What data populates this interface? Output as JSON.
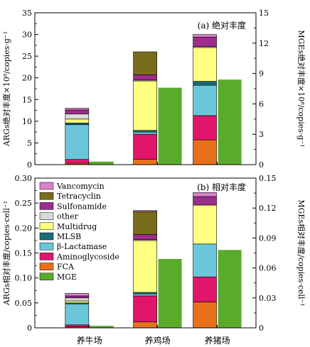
{
  "chart_data": [
    {
      "type": "bar",
      "stacked": true,
      "panel_label": "(b) 相对丰度",
      "categories": [
        "养牛场",
        "养鸡场",
        "养猪场"
      ],
      "ylabel": "ARGs相对丰度/copies·cell⁻¹",
      "y2label": "MGEs相对丰度/copies·cell⁻¹",
      "ylim": [
        0,
        0.3
      ],
      "yticks": [
        "0",
        "0.05",
        "0.10",
        "0.15",
        "0.20",
        "0.25",
        "0.30"
      ],
      "y2lim": [
        0,
        0.15
      ],
      "y2ticks": [
        "0",
        "0.03",
        "0.06",
        "0.09",
        "0.12",
        "0.15"
      ],
      "legend": [
        "Vancomycin",
        "Tetracyclin",
        "Sulfonamide",
        "other",
        "Multidrug",
        "MLSB",
        "β-Lactamase",
        "Aminoglycoside",
        "FCA",
        "MGE"
      ],
      "legend_position": "top-left",
      "series": [
        {
          "name": "FCA",
          "color": "#e8701a",
          "values": [
            0.002,
            0.012,
            0.052
          ]
        },
        {
          "name": "Aminoglycoside",
          "color": "#e0156b",
          "values": [
            0.004,
            0.052,
            0.05
          ]
        },
        {
          "name": "β-Lactamase",
          "color": "#6cc6d9",
          "values": [
            0.042,
            0.004,
            0.066
          ]
        },
        {
          "name": "MLSB",
          "color": "#1a6b78",
          "values": [
            0.002,
            0.003,
            0.0
          ]
        },
        {
          "name": "Multidrug",
          "color": "#ffff80",
          "values": [
            0.004,
            0.104,
            0.078
          ]
        },
        {
          "name": "other",
          "color": "#d9d9d9",
          "values": [
            0.006,
            0.002,
            0.0
          ]
        },
        {
          "name": "Sulfonamide",
          "color": "#9c2d8d",
          "values": [
            0.004,
            0.01,
            0.017
          ]
        },
        {
          "name": "Tetracyclin",
          "color": "#7a6c1e",
          "values": [
            0.0,
            0.046,
            0.0
          ]
        },
        {
          "name": "Vancomycin",
          "color": "#d783c9",
          "values": [
            0.005,
            0.002,
            0.008
          ]
        }
      ],
      "mge": {
        "name": "MGE",
        "color": "#5aaa2c",
        "values": [
          0.002,
          0.069,
          0.078
        ]
      }
    },
    {
      "type": "bar",
      "stacked": true,
      "panel_label": "(a) 绝对丰度",
      "categories": [
        "养牛场",
        "养鸡场",
        "养猪场"
      ],
      "ylabel": "ARGs绝对丰度×10⁸/copies·g⁻¹",
      "y2label": "MGEs绝对丰度×10⁸/copies·g⁻¹",
      "ylim": [
        0,
        35
      ],
      "yticks": [
        "0",
        "5",
        "10",
        "15",
        "20",
        "25",
        "30",
        "35"
      ],
      "y2lim": [
        0,
        15
      ],
      "y2ticks": [
        "0",
        "3",
        "6",
        "9",
        "12",
        "15"
      ],
      "series": [
        {
          "name": "FCA",
          "color": "#e8701a",
          "values": [
            0.3,
            1.2,
            5.7
          ]
        },
        {
          "name": "Aminoglycoside",
          "color": "#e0156b",
          "values": [
            0.9,
            5.8,
            5.6
          ]
        },
        {
          "name": "β-Lactamase",
          "color": "#6cc6d9",
          "values": [
            8.0,
            0.5,
            7.0
          ]
        },
        {
          "name": "MLSB",
          "color": "#1a6b78",
          "values": [
            0.4,
            0.4,
            0.9
          ]
        },
        {
          "name": "Multidrug",
          "color": "#ffff80",
          "values": [
            0.9,
            11.4,
            7.8
          ]
        },
        {
          "name": "other",
          "color": "#d9d9d9",
          "values": [
            1.2,
            0.2,
            0.2
          ]
        },
        {
          "name": "Sulfonamide",
          "color": "#9c2d8d",
          "values": [
            0.9,
            1.2,
            2.2
          ]
        },
        {
          "name": "Tetracyclin",
          "color": "#7a6c1e",
          "values": [
            0.0,
            5.3,
            0.0
          ]
        },
        {
          "name": "Vancomycin",
          "color": "#d783c9",
          "values": [
            0.4,
            0.0,
            0.6
          ]
        }
      ],
      "mge": {
        "name": "MGE",
        "color": "#5aaa2c",
        "values": [
          0.3,
          7.6,
          8.4
        ]
      }
    }
  ]
}
